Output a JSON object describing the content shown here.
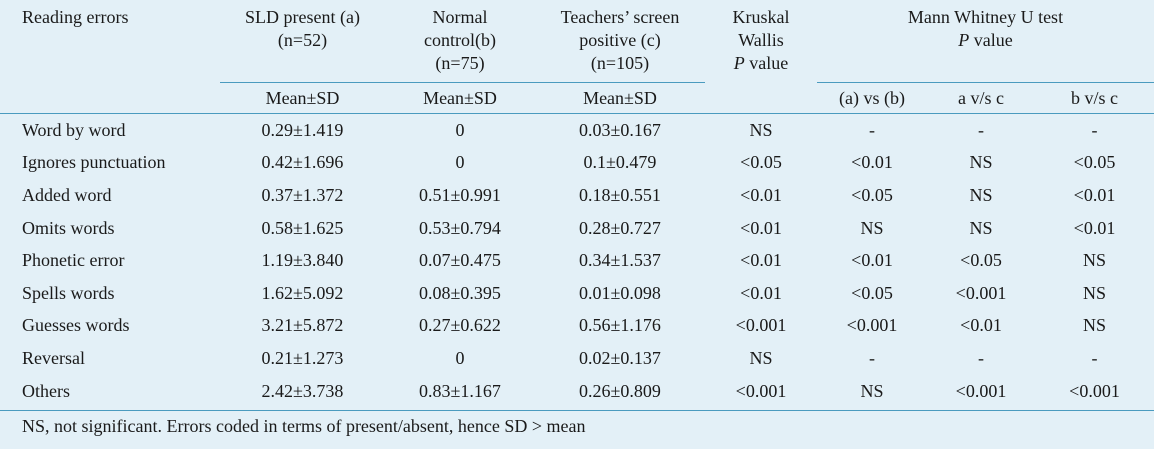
{
  "header": {
    "col_reading_errors": "Reading errors",
    "col_sld_line1": "SLD present (a)",
    "col_sld_line2": "(n=52)",
    "col_normal_line1": "Normal",
    "col_normal_line2": "control(b)",
    "col_normal_line3": "(n=75)",
    "col_teachers_line1": "Teachers’ screen",
    "col_teachers_line2": "positive (c)",
    "col_teachers_line3": "(n=105)",
    "col_kruskal_line1": "Kruskal",
    "col_kruskal_line2": "Wallis",
    "col_kruskal_p": "P",
    "col_kruskal_value": "value",
    "col_mann_line1": "Mann Whitney U test",
    "col_mann_p": "P",
    "col_mann_value": "value",
    "sub_mean_a": "Mean±SD",
    "sub_mean_b": "Mean±SD",
    "sub_mean_c": "Mean±SD",
    "sub_ab": "(a) vs (b)",
    "sub_ac": "a v/s c",
    "sub_bc": "b v/s c"
  },
  "rows": [
    {
      "label": "Word by word",
      "a": "0.29±1.419",
      "b": "0",
      "c": "0.03±0.167",
      "kw": "NS",
      "ab": "-",
      "ac": "-",
      "bc": "-"
    },
    {
      "label": "Ignores punctuation",
      "a": "0.42±1.696",
      "b": "0",
      "c": "0.1±0.479",
      "kw": "<0.05",
      "ab": "<0.01",
      "ac": "NS",
      "bc": "<0.05"
    },
    {
      "label": "Added word",
      "a": "0.37±1.372",
      "b": "0.51±0.991",
      "c": "0.18±0.551",
      "kw": "<0.01",
      "ab": "<0.05",
      "ac": "NS",
      "bc": "<0.01"
    },
    {
      "label": "Omits words",
      "a": "0.58±1.625",
      "b": "0.53±0.794",
      "c": "0.28±0.727",
      "kw": "<0.01",
      "ab": "NS",
      "ac": "NS",
      "bc": "<0.01"
    },
    {
      "label": "Phonetic error",
      "a": "1.19±3.840",
      "b": "0.07±0.475",
      "c": "0.34±1.537",
      "kw": "<0.01",
      "ab": "<0.01",
      "ac": "<0.05",
      "bc": "NS"
    },
    {
      "label": "Spells words",
      "a": "1.62±5.092",
      "b": "0.08±0.395",
      "c": "0.01±0.098",
      "kw": "<0.01",
      "ab": "<0.05",
      "ac": "<0.001",
      "bc": "NS"
    },
    {
      "label": "Guesses words",
      "a": "3.21±5.872",
      "b": "0.27±0.622",
      "c": "0.56±1.176",
      "kw": "<0.001",
      "ab": "<0.001",
      "ac": "<0.01",
      "bc": "NS"
    },
    {
      "label": "Reversal",
      "a": "0.21±1.273",
      "b": "0",
      "c": "0.02±0.137",
      "kw": "NS",
      "ab": "-",
      "ac": "-",
      "bc": "-"
    },
    {
      "label": "Others",
      "a": "2.42±3.738",
      "b": "0.83±1.167",
      "c": "0.26±0.809",
      "kw": "<0.001",
      "ab": "NS",
      "ac": "<0.001",
      "bc": "<0.001"
    }
  ],
  "footnote": "NS, not significant. Errors coded in terms of present/absent, hence SD > mean"
}
